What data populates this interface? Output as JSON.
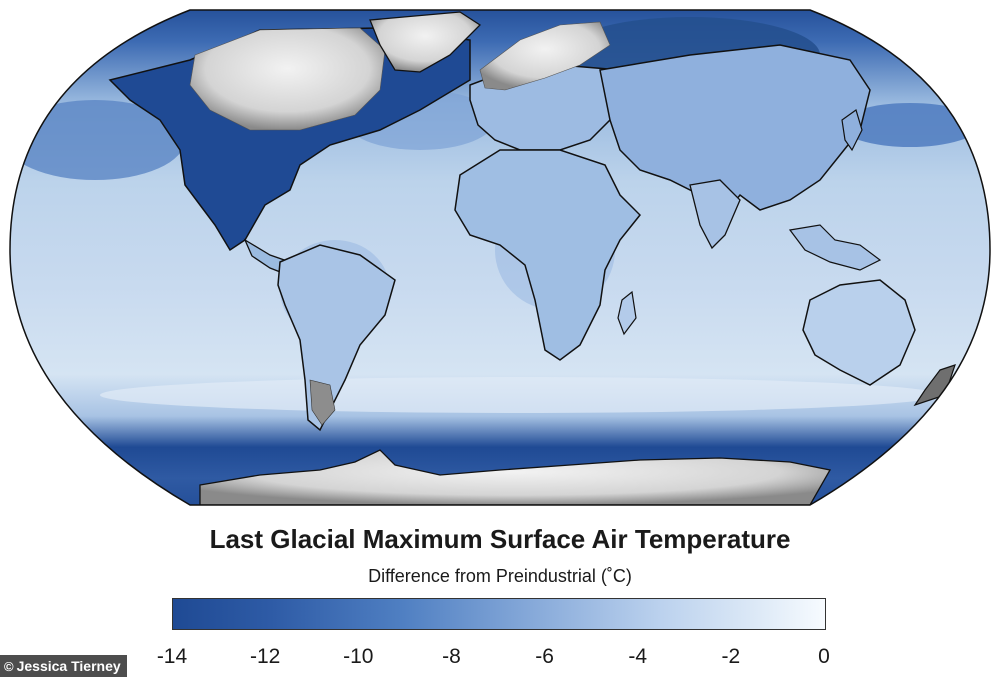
{
  "title": "Last Glacial Maximum Surface Air Temperature",
  "subtitle": "Difference from Preindustrial (˚C)",
  "credit": {
    "symbol": "©",
    "text": "Jessica Tierney"
  },
  "colorbar": {
    "min": -14,
    "max": 0,
    "ticks": [
      "-14",
      "-12",
      "-10",
      "-8",
      "-6",
      "-4",
      "-2",
      "0"
    ],
    "color_min": "#1f4a94",
    "color_max": "#f7fbff"
  },
  "colors": {
    "ocean_base": "#b8cfe8",
    "ice_sheet": "#dcdcdc",
    "coastline": "#111111"
  }
}
